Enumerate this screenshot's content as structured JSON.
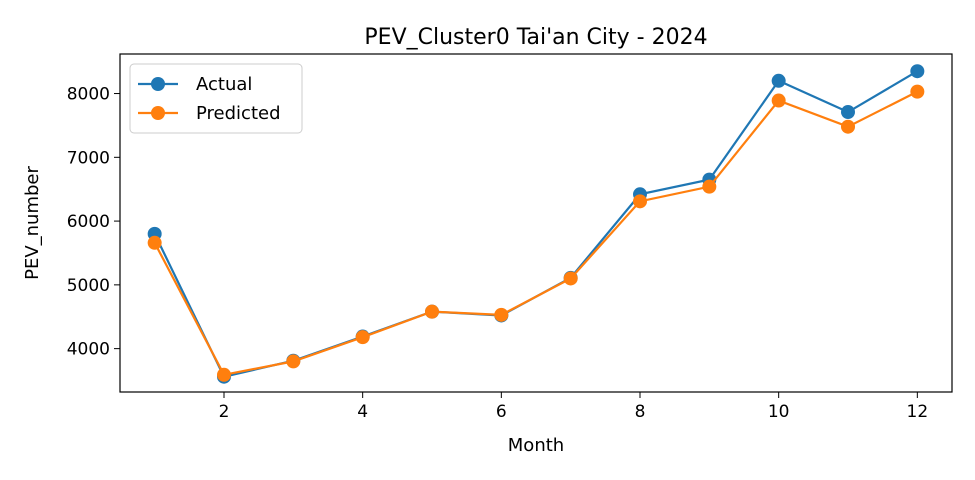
{
  "chart_data": {
    "type": "line",
    "title": "PEV_Cluster0 Tai'an City - 2024",
    "xlabel": "Month",
    "ylabel": "PEV_number",
    "xlim": [
      0.5,
      12.5
    ],
    "ylim": [
      3320,
      8620
    ],
    "xticks": [
      2,
      4,
      6,
      8,
      10,
      12
    ],
    "yticks": [
      4000,
      5000,
      6000,
      7000,
      8000
    ],
    "x": [
      1,
      2,
      3,
      4,
      5,
      6,
      7,
      8,
      9,
      10,
      11,
      12
    ],
    "series": [
      {
        "name": "Actual",
        "color": "#1f77b4",
        "marker": "circle",
        "values": [
          5800,
          3560,
          3810,
          4190,
          4580,
          4520,
          5110,
          6420,
          6650,
          8200,
          7710,
          8350
        ]
      },
      {
        "name": "Predicted",
        "color": "#ff7f0e",
        "marker": "circle",
        "values": [
          5660,
          3590,
          3800,
          4180,
          4580,
          4530,
          5100,
          6310,
          6540,
          7890,
          7480,
          8030
        ]
      }
    ],
    "legend": "top-left",
    "grid": false
  }
}
